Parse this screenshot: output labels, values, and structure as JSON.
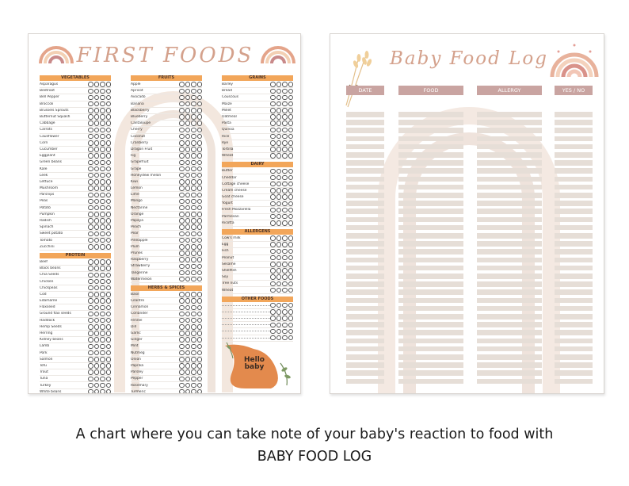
{
  "sheet1": {
    "title": "FIRST FOODS",
    "columns": [
      {
        "sections": [
          {
            "heading": "VEGETABLES",
            "items": [
              "Asparagus",
              "Beetroot",
              "Bell Pepper",
              "Broccoli",
              "Brussels Sprouts",
              "Butternut Squash",
              "Cabbage",
              "Carrots",
              "Cauliflower",
              "Corn",
              "Cucumber",
              "Eggplant",
              "Green beans",
              "Kale",
              "Leek",
              "Lettuce",
              "Mushroom",
              "Parsnips",
              "Peas",
              "Potato",
              "Pumpkin",
              "Radish",
              "Spinach",
              "Sweet potato",
              "Tomato",
              "Zucchini"
            ]
          },
          {
            "heading": "PROTEIN",
            "items": [
              "Beef",
              "Black beans",
              "Chia Seeds",
              "Chicken",
              "Chickpeas",
              "Cod",
              "Edamame",
              "Flaxseed",
              "Ground flax seeds",
              "Haddock",
              "Hemp Seeds",
              "Herring",
              "Kidney beans",
              "Lamb",
              "Pork",
              "Salmon",
              "Tofu",
              "Trout",
              "Tuna",
              "Turkey",
              "White beans"
            ]
          }
        ]
      },
      {
        "sections": [
          {
            "heading": "FRUITS",
            "items": [
              "Apple",
              "Apricot",
              "Avocado",
              "Banana",
              "Blackberry",
              "Blueberry",
              "Cantaloupe",
              "Cherry",
              "Coconut",
              "Cranberry",
              "Dragon Fruit",
              "Fig",
              "Grapefruit",
              "Grape",
              "Honeydew melon",
              "Kiwi",
              "Lemon",
              "Lime",
              "Mango",
              "Nectarine",
              "Orange",
              "Papaya",
              "Peach",
              "Pear",
              "Pineapple",
              "Plum",
              "Prunes",
              "Raspberry",
              "Strawberry",
              "Tangerine",
              "Watermelon"
            ]
          },
          {
            "heading": "HERBS & SPICES",
            "items": [
              "Basil",
              "Cilantro",
              "Cinnamon",
              "Coriander",
              "Fennel",
              "Dill",
              "Garlic",
              "Ginger",
              "Mint",
              "Nutmeg",
              "Onion",
              "Paprika",
              "Parsley",
              "Pepper",
              "Rosemary",
              "Turmeric"
            ]
          }
        ]
      },
      {
        "sections": [
          {
            "heading": "GRAINS",
            "items": [
              "Barley",
              "Bread",
              "Couscous",
              "Maize",
              "Millet",
              "Oatmeal",
              "Pasta",
              "Quinoa",
              "Rice",
              "Rye",
              "Tortilla",
              "Wheat"
            ]
          },
          {
            "heading": "DAIRY",
            "items": [
              "Butter",
              "Cheddar",
              "Cottage cheese",
              "Cream cheese",
              "Goat cheese",
              "Yogurt",
              "Fresh Mozzarella",
              "Parmesan",
              "Ricotta"
            ]
          },
          {
            "heading": "ALLERGENS",
            "items": [
              "Cow's milk",
              "Egg",
              "Fish",
              "Peanut",
              "Sesame",
              "Shellfish",
              "Soy",
              "Tree nuts",
              "Wheat"
            ]
          },
          {
            "heading": "OTHER FOODS",
            "items": [
              "",
              "",
              "",
              "",
              "",
              ""
            ]
          }
        ]
      }
    ],
    "sticker_text": "Hello baby"
  },
  "sheet2": {
    "title": "Baby Food Log",
    "headers": [
      "DATE",
      "FOOD",
      "ALLERGY",
      "YES / NO"
    ]
  },
  "caption": {
    "line1": "A chart where you can take note of your baby's reaction to food with",
    "line2": "BABY FOOD LOG"
  },
  "colors": {
    "accent_orange": "#f2a65a",
    "title_pink": "#d4a18c",
    "header_mauve": "#c9a4a1",
    "bar_beige": "#e6ded7"
  }
}
